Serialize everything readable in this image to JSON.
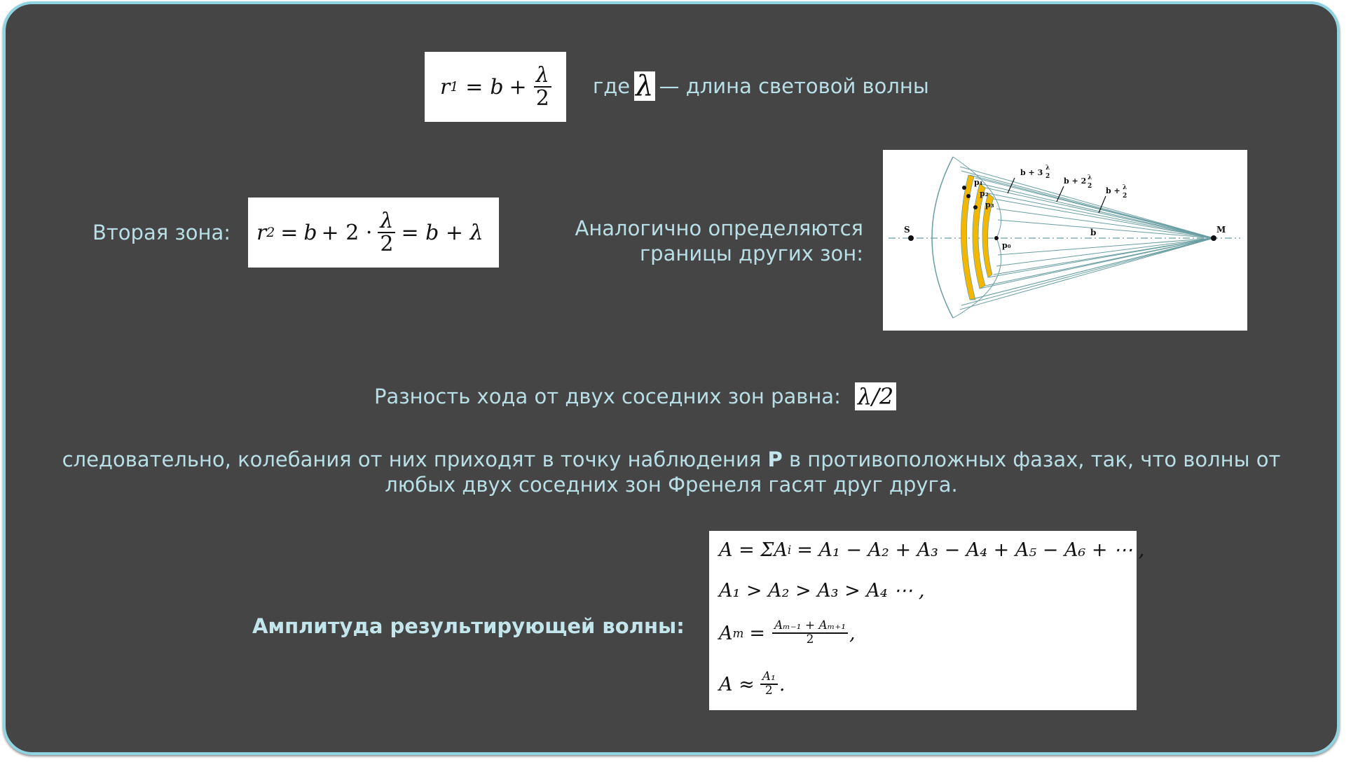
{
  "colors": {
    "background": "#454545",
    "frame": "#8fd4e2",
    "text": "#b9dfe6",
    "zone_fill": "#f4b700",
    "ray": "#6a9ea2"
  },
  "formula1": {
    "lhs": "r",
    "lhs_sub": "1",
    "op": "=",
    "b": "b",
    "plus": "+",
    "num": "λ",
    "den": "2"
  },
  "where": {
    "prefix": "где",
    "symbol": "λ",
    "suffix": "— длина световой волны"
  },
  "second_zone": {
    "label": "Вторая зона:",
    "lhs": "r",
    "lhs_sub": "2",
    "eq": "=",
    "b": "b",
    "plus_two_dot": "+ 2 ·",
    "num": "λ",
    "den": "2",
    "tail": "= b + λ"
  },
  "others": {
    "line1": "Аналогично определяются",
    "line2": "границы других зон:"
  },
  "diagram": {
    "label_s": "S",
    "label_m": "M",
    "label_b": "b",
    "label_p0": "p₀",
    "label_p1": "p₁",
    "label_p2": "p₂",
    "label_p3": "p₃",
    "label_b3": "b + 3",
    "label_b2": "b + 2",
    "label_b1": "b +",
    "frac_num": "λ",
    "frac_den": "2"
  },
  "difference": {
    "text": "Разность хода от двух соседних зон равна:",
    "value": "λ/2"
  },
  "consequence": {
    "line1_before": "следовательно, колебания от них приходят в точку наблюдения",
    "bold": "P",
    "line1_after": "в противоположных фазах, так, что волны от",
    "line2": "любых двух соседних зон Френеля гасят друг друга."
  },
  "amplitude": {
    "label": "Амплитуда результирующей волны:",
    "eq1": "A = ΣA",
    "eq1_sub": "i",
    "eq1_rest": "= A₁ − A₂ + A₃ − A₄ + A₅ − A₆ + ⋯ ,",
    "eq2": "A₁ > A₂ > A₃ > A₄ ⋯ ,",
    "eq3_lhs": "A",
    "eq3_lhs_sub": "m",
    "eq3_eq": "=",
    "eq3_num": "Aₘ₋₁ + Aₘ₊₁",
    "eq3_den": "2",
    "eq3_tail": ",",
    "eq4_lhs": "A ≈",
    "eq4_num": "A₁",
    "eq4_den": "2",
    "eq4_tail": "."
  }
}
